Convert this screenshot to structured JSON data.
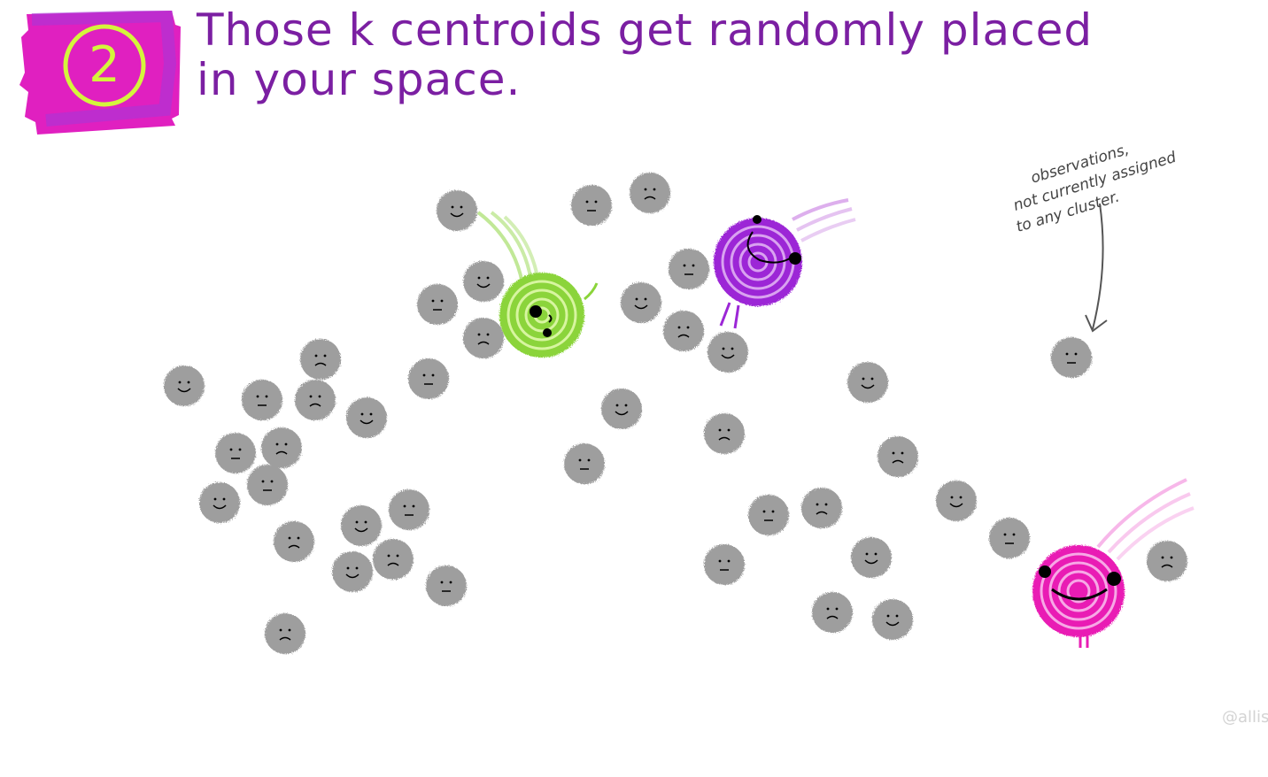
{
  "step": {
    "number": "2",
    "badge_color": "#e020c0",
    "number_color": "#d4f53c"
  },
  "title": {
    "line1": "Those k centroids get randomly placed",
    "line2": "in your space.",
    "color": "#7b1fa2"
  },
  "annotation": {
    "line1": "observations,",
    "line2": "not currently assigned",
    "line3": "to any cluster."
  },
  "signature": "@allis",
  "colors": {
    "observation": "#9e9e9e",
    "centroid_green": "#8bd43a",
    "centroid_purple": "#9c27d6",
    "centroid_pink": "#e91eb4"
  },
  "icons": {
    "observation": "gray-blob-face-icon",
    "centroid": "spiral-blob-face-icon"
  }
}
